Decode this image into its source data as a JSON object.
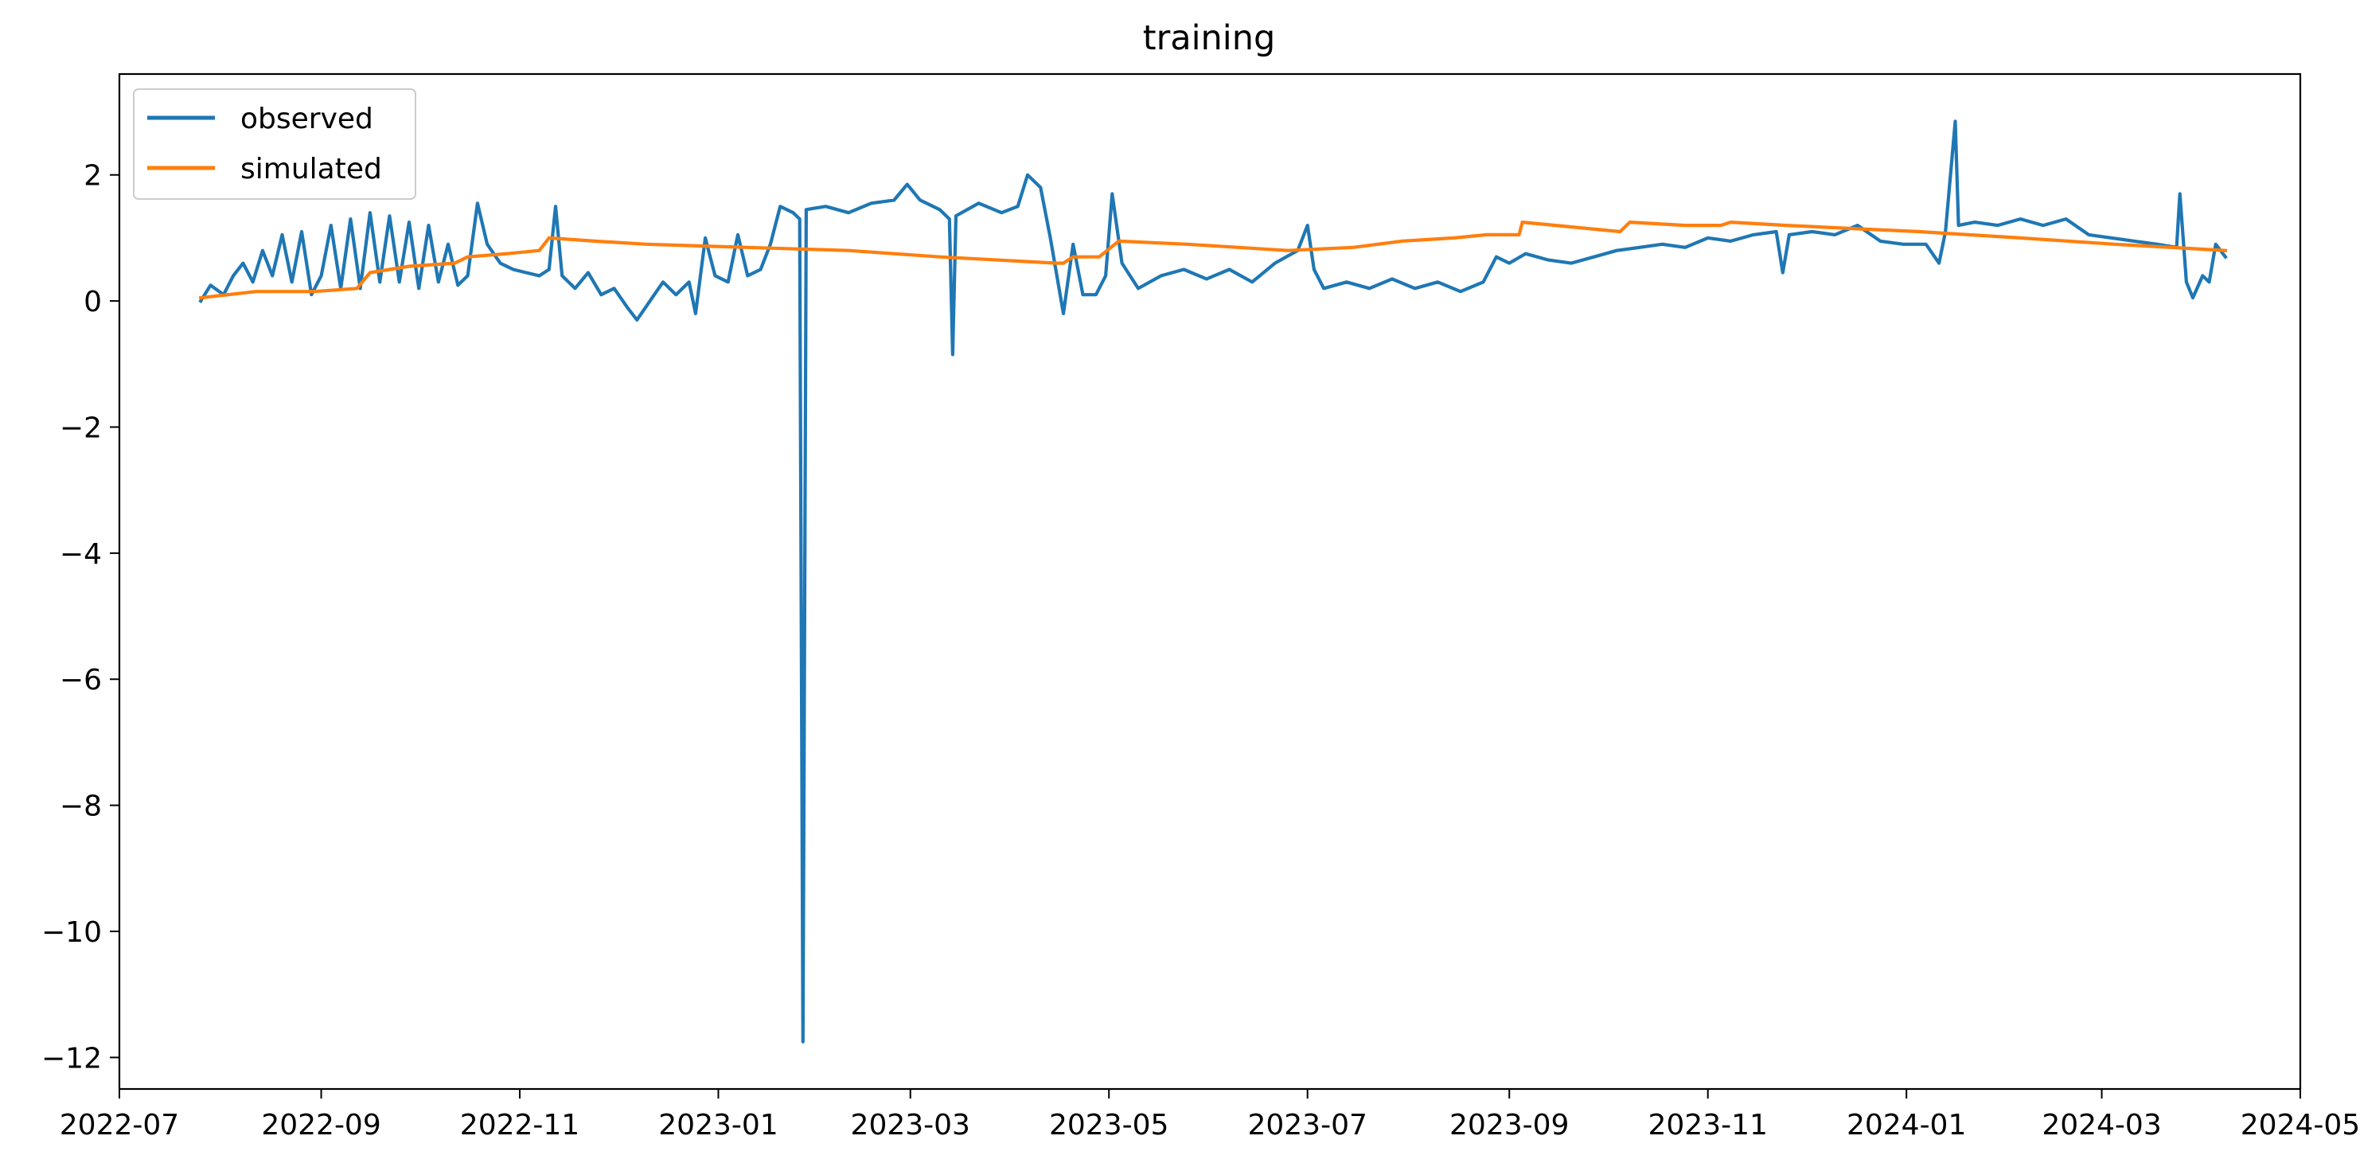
{
  "chart_data": {
    "type": "line",
    "title": "training",
    "xlabel": "",
    "ylabel": "",
    "x_axis": "date",
    "xlim": [
      "2022-07-01",
      "2024-05-01"
    ],
    "ylim": [
      -12.5,
      3.6
    ],
    "x_ticks": [
      "2022-07",
      "2022-09",
      "2022-11",
      "2023-01",
      "2023-03",
      "2023-05",
      "2023-07",
      "2023-09",
      "2023-11",
      "2024-01",
      "2024-03",
      "2024-05"
    ],
    "y_ticks": [
      -12,
      -10,
      -8,
      -6,
      -4,
      -2,
      0,
      2
    ],
    "grid": false,
    "legend_position": "top-left",
    "series": [
      {
        "name": "observed",
        "color": "#1f77b4",
        "points": [
          [
            "2022-07-26",
            0.0
          ],
          [
            "2022-07-29",
            0.25
          ],
          [
            "2022-08-02",
            0.1
          ],
          [
            "2022-08-05",
            0.4
          ],
          [
            "2022-08-08",
            0.6
          ],
          [
            "2022-08-11",
            0.3
          ],
          [
            "2022-08-14",
            0.8
          ],
          [
            "2022-08-17",
            0.4
          ],
          [
            "2022-08-20",
            1.05
          ],
          [
            "2022-08-23",
            0.3
          ],
          [
            "2022-08-26",
            1.1
          ],
          [
            "2022-08-29",
            0.1
          ],
          [
            "2022-09-01",
            0.4
          ],
          [
            "2022-09-04",
            1.2
          ],
          [
            "2022-09-07",
            0.2
          ],
          [
            "2022-09-10",
            1.3
          ],
          [
            "2022-09-13",
            0.2
          ],
          [
            "2022-09-16",
            1.4
          ],
          [
            "2022-09-19",
            0.3
          ],
          [
            "2022-09-22",
            1.35
          ],
          [
            "2022-09-25",
            0.3
          ],
          [
            "2022-09-28",
            1.25
          ],
          [
            "2022-10-01",
            0.2
          ],
          [
            "2022-10-04",
            1.2
          ],
          [
            "2022-10-07",
            0.3
          ],
          [
            "2022-10-10",
            0.9
          ],
          [
            "2022-10-13",
            0.25
          ],
          [
            "2022-10-16",
            0.4
          ],
          [
            "2022-10-19",
            1.55
          ],
          [
            "2022-10-22",
            0.9
          ],
          [
            "2022-10-26",
            0.6
          ],
          [
            "2022-10-30",
            0.5
          ],
          [
            "2022-11-03",
            0.45
          ],
          [
            "2022-11-07",
            0.4
          ],
          [
            "2022-11-10",
            0.5
          ],
          [
            "2022-11-12",
            1.5
          ],
          [
            "2022-11-14",
            0.4
          ],
          [
            "2022-11-18",
            0.2
          ],
          [
            "2022-11-22",
            0.45
          ],
          [
            "2022-11-26",
            0.1
          ],
          [
            "2022-11-30",
            0.2
          ],
          [
            "2022-12-04",
            -0.1
          ],
          [
            "2022-12-07",
            -0.3
          ],
          [
            "2022-12-11",
            0.0
          ],
          [
            "2022-12-15",
            0.3
          ],
          [
            "2022-12-19",
            0.1
          ],
          [
            "2022-12-23",
            0.3
          ],
          [
            "2022-12-25",
            -0.2
          ],
          [
            "2022-12-28",
            1.0
          ],
          [
            "2022-12-31",
            0.4
          ],
          [
            "2023-01-04",
            0.3
          ],
          [
            "2023-01-07",
            1.05
          ],
          [
            "2023-01-10",
            0.4
          ],
          [
            "2023-01-14",
            0.5
          ],
          [
            "2023-01-17",
            0.9
          ],
          [
            "2023-01-20",
            1.5
          ],
          [
            "2023-01-24",
            1.4
          ],
          [
            "2023-01-26",
            1.3
          ],
          [
            "2023-01-27",
            -11.75
          ],
          [
            "2023-01-28",
            1.45
          ],
          [
            "2023-02-03",
            1.5
          ],
          [
            "2023-02-10",
            1.4
          ],
          [
            "2023-02-17",
            1.55
          ],
          [
            "2023-02-24",
            1.6
          ],
          [
            "2023-02-28",
            1.85
          ],
          [
            "2023-03-04",
            1.6
          ],
          [
            "2023-03-10",
            1.45
          ],
          [
            "2023-03-13",
            1.3
          ],
          [
            "2023-03-14",
            -0.85
          ],
          [
            "2023-03-15",
            1.35
          ],
          [
            "2023-03-22",
            1.55
          ],
          [
            "2023-03-29",
            1.4
          ],
          [
            "2023-04-03",
            1.5
          ],
          [
            "2023-04-06",
            2.0
          ],
          [
            "2023-04-10",
            1.8
          ],
          [
            "2023-04-13",
            1.0
          ],
          [
            "2023-04-17",
            -0.2
          ],
          [
            "2023-04-20",
            0.9
          ],
          [
            "2023-04-23",
            0.1
          ],
          [
            "2023-04-27",
            0.1
          ],
          [
            "2023-04-30",
            0.4
          ],
          [
            "2023-05-02",
            1.7
          ],
          [
            "2023-05-05",
            0.6
          ],
          [
            "2023-05-10",
            0.2
          ],
          [
            "2023-05-17",
            0.4
          ],
          [
            "2023-05-24",
            0.5
          ],
          [
            "2023-05-31",
            0.35
          ],
          [
            "2023-06-07",
            0.5
          ],
          [
            "2023-06-14",
            0.3
          ],
          [
            "2023-06-21",
            0.6
          ],
          [
            "2023-06-28",
            0.8
          ],
          [
            "2023-07-01",
            1.2
          ],
          [
            "2023-07-03",
            0.5
          ],
          [
            "2023-07-06",
            0.2
          ],
          [
            "2023-07-13",
            0.3
          ],
          [
            "2023-07-20",
            0.2
          ],
          [
            "2023-07-27",
            0.35
          ],
          [
            "2023-08-03",
            0.2
          ],
          [
            "2023-08-10",
            0.3
          ],
          [
            "2023-08-17",
            0.15
          ],
          [
            "2023-08-24",
            0.3
          ],
          [
            "2023-08-28",
            0.7
          ],
          [
            "2023-09-01",
            0.6
          ],
          [
            "2023-09-06",
            0.75
          ],
          [
            "2023-09-13",
            0.65
          ],
          [
            "2023-09-20",
            0.6
          ],
          [
            "2023-09-27",
            0.7
          ],
          [
            "2023-10-04",
            0.8
          ],
          [
            "2023-10-11",
            0.85
          ],
          [
            "2023-10-18",
            0.9
          ],
          [
            "2023-10-25",
            0.85
          ],
          [
            "2023-11-01",
            1.0
          ],
          [
            "2023-11-08",
            0.95
          ],
          [
            "2023-11-15",
            1.05
          ],
          [
            "2023-11-22",
            1.1
          ],
          [
            "2023-11-24",
            0.45
          ],
          [
            "2023-11-26",
            1.05
          ],
          [
            "2023-12-03",
            1.1
          ],
          [
            "2023-12-10",
            1.05
          ],
          [
            "2023-12-17",
            1.2
          ],
          [
            "2023-12-24",
            0.95
          ],
          [
            "2023-12-31",
            0.9
          ],
          [
            "2024-01-07",
            0.9
          ],
          [
            "2024-01-11",
            0.6
          ],
          [
            "2024-01-13",
            1.1
          ],
          [
            "2024-01-16",
            2.85
          ],
          [
            "2024-01-17",
            1.2
          ],
          [
            "2024-01-22",
            1.25
          ],
          [
            "2024-01-29",
            1.2
          ],
          [
            "2024-02-05",
            1.3
          ],
          [
            "2024-02-12",
            1.2
          ],
          [
            "2024-02-19",
            1.3
          ],
          [
            "2024-02-26",
            1.05
          ],
          [
            "2024-03-04",
            1.0
          ],
          [
            "2024-03-11",
            0.95
          ],
          [
            "2024-03-18",
            0.9
          ],
          [
            "2024-03-24",
            0.85
          ],
          [
            "2024-03-25",
            1.7
          ],
          [
            "2024-03-27",
            0.3
          ],
          [
            "2024-03-29",
            0.05
          ],
          [
            "2024-04-01",
            0.4
          ],
          [
            "2024-04-03",
            0.3
          ],
          [
            "2024-04-05",
            0.9
          ],
          [
            "2024-04-08",
            0.7
          ]
        ]
      },
      {
        "name": "simulated",
        "color": "#ff7f0e",
        "points": [
          [
            "2022-07-26",
            0.05
          ],
          [
            "2022-08-12",
            0.15
          ],
          [
            "2022-08-30",
            0.15
          ],
          [
            "2022-09-12",
            0.2
          ],
          [
            "2022-09-16",
            0.45
          ],
          [
            "2022-09-28",
            0.55
          ],
          [
            "2022-10-12",
            0.6
          ],
          [
            "2022-10-16",
            0.7
          ],
          [
            "2022-10-28",
            0.75
          ],
          [
            "2022-11-07",
            0.8
          ],
          [
            "2022-11-10",
            1.0
          ],
          [
            "2022-11-24",
            0.95
          ],
          [
            "2022-12-10",
            0.9
          ],
          [
            "2023-01-10",
            0.85
          ],
          [
            "2023-02-10",
            0.8
          ],
          [
            "2023-03-10",
            0.7
          ],
          [
            "2023-04-15",
            0.6
          ],
          [
            "2023-04-17",
            0.6
          ],
          [
            "2023-04-20",
            0.7
          ],
          [
            "2023-04-28",
            0.7
          ],
          [
            "2023-05-04",
            0.95
          ],
          [
            "2023-05-25",
            0.9
          ],
          [
            "2023-06-25",
            0.8
          ],
          [
            "2023-07-15",
            0.85
          ],
          [
            "2023-07-30",
            0.95
          ],
          [
            "2023-08-15",
            1.0
          ],
          [
            "2023-08-25",
            1.05
          ],
          [
            "2023-09-04",
            1.05
          ],
          [
            "2023-09-05",
            1.25
          ],
          [
            "2023-09-25",
            1.15
          ],
          [
            "2023-10-05",
            1.1
          ],
          [
            "2023-10-08",
            1.25
          ],
          [
            "2023-10-25",
            1.2
          ],
          [
            "2023-11-05",
            1.2
          ],
          [
            "2023-11-08",
            1.25
          ],
          [
            "2023-11-25",
            1.2
          ],
          [
            "2023-12-15",
            1.15
          ],
          [
            "2024-01-05",
            1.1
          ],
          [
            "2024-02-05",
            1.0
          ],
          [
            "2024-03-05",
            0.9
          ],
          [
            "2024-04-08",
            0.8
          ]
        ]
      }
    ]
  }
}
